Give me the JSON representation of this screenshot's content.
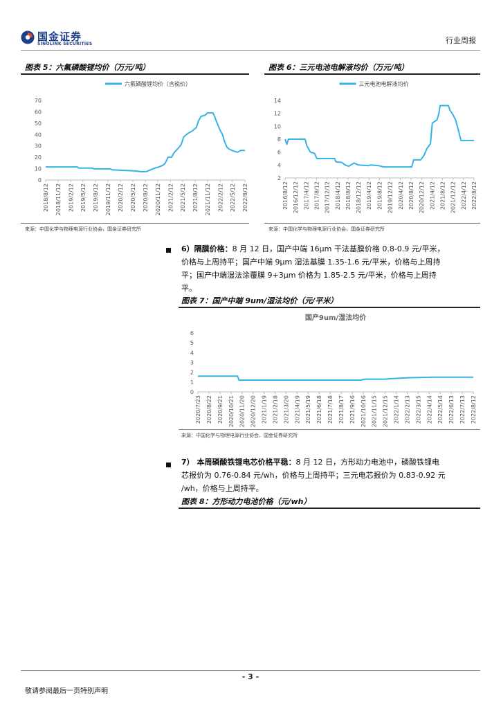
{
  "header": {
    "logo_cn": "国金证券",
    "logo_en": "SINOLINK SECURITIES",
    "report_type": "行业周报"
  },
  "fig5": {
    "title": "图表 5：六氟磷酸锂均价（万元/吨）",
    "source": "来源：中国化学与物理电源行业协会，国金证券研究所"
  },
  "fig6": {
    "title": "图表 6：三元电池电解液均价（万元/吨）",
    "source": "来源：中国化学与物理电源行业协会，国金证券研究所"
  },
  "fig7": {
    "title": "图表 7：国产中端 9um/湿法均价（元/平米）",
    "source": "来源：中国化学与物理电源行业协会，国金证券研究所"
  },
  "fig8": {
    "title": "图表 8：方形动力电池价格（元/wh）"
  },
  "para6": {
    "lead": "6）隔膜价格：",
    "body_line1": "8 月 12 日，国产中端 16μm 干法基膜价格 0.8-0.9 元/平米，",
    "body_line2": "价格与上周持平；国产中端 9μm 湿法基膜 1.35-1.6 元/平米，价格与上周持",
    "body_line3": "平；国产中端湿法涂覆膜 9+3μm 价格为 1.85-2.5 元/平米，价格与上周持",
    "body_line4": "平。"
  },
  "para7": {
    "lead": "7） 本周磷酸铁锂电芯价格平稳：",
    "body_line1": "8 月 12 日，方形动力电池中，磷酸铁锂电",
    "body_line2": "芯报价为 0.76-0.84 元/wh，价格与上周持平；三元电芯报价为 0.83-0.92 元",
    "body_line3": "/wh，价格与上周持平。"
  },
  "footer": {
    "page_number": "- 3 -",
    "disclaimer": "敬请参阅最后一页特别声明"
  },
  "chart_data": [
    {
      "id": "fig5",
      "type": "line",
      "legend": "六氟磷酸锂均价（含税价）",
      "legend_position": "top-center",
      "color": "#33b3e6",
      "ylim": [
        0,
        70
      ],
      "yticks": [
        0,
        10,
        20,
        30,
        40,
        50,
        60,
        70
      ],
      "xlim": [
        "2018-08-12",
        "2022-08-12"
      ],
      "xticks": [
        "2018/8/12",
        "2018/11/12",
        "2019/2/12",
        "2019/5/12",
        "2019/8/12",
        "2019/11/12",
        "2020/2/12",
        "2020/5/12",
        "2020/8/12",
        "2020/11/12",
        "2021/2/12",
        "2021/5/12",
        "2021/8/12",
        "2021/11/12",
        "2022/2/12",
        "2022/5/12",
        "2022/8/12"
      ],
      "points": [
        [
          "2018-08-12",
          11.5
        ],
        [
          "2019-04-01",
          11.5
        ],
        [
          "2019-04-10",
          10.5
        ],
        [
          "2019-07-20",
          10.5
        ],
        [
          "2019-08-01",
          9.8
        ],
        [
          "2019-12-01",
          9.8
        ],
        [
          "2019-12-10",
          9
        ],
        [
          "2020-03-01",
          8.5
        ],
        [
          "2020-06-01",
          8
        ],
        [
          "2020-07-15",
          7.3
        ],
        [
          "2020-08-20",
          7.5
        ],
        [
          "2020-09-20",
          9
        ],
        [
          "2020-10-20",
          10.5
        ],
        [
          "2020-11-20",
          11.5
        ],
        [
          "2020-12-20",
          13
        ],
        [
          "2021-01-05",
          15
        ],
        [
          "2021-01-25",
          20
        ],
        [
          "2021-02-20",
          20
        ],
        [
          "2021-03-10",
          24
        ],
        [
          "2021-04-10",
          28
        ],
        [
          "2021-05-01",
          31
        ],
        [
          "2021-05-20",
          38
        ],
        [
          "2021-06-20",
          41
        ],
        [
          "2021-07-20",
          43
        ],
        [
          "2021-08-20",
          46
        ],
        [
          "2021-09-05",
          52
        ],
        [
          "2021-09-25",
          56
        ],
        [
          "2021-10-25",
          57
        ],
        [
          "2021-11-10",
          59
        ],
        [
          "2021-12-20",
          59
        ],
        [
          "2022-01-01",
          56
        ],
        [
          "2022-01-20",
          50
        ],
        [
          "2022-02-10",
          44
        ],
        [
          "2022-02-28",
          40
        ],
        [
          "2022-03-15",
          34
        ],
        [
          "2022-04-01",
          29
        ],
        [
          "2022-04-20",
          27
        ],
        [
          "2022-05-10",
          26
        ],
        [
          "2022-06-01",
          25
        ],
        [
          "2022-06-20",
          24.5
        ],
        [
          "2022-07-10",
          26
        ],
        [
          "2022-08-12",
          26
        ]
      ]
    },
    {
      "id": "fig6",
      "type": "line",
      "legend": "三元电池电解液均价",
      "legend_position": "top-center",
      "color": "#33b3e6",
      "ylim": [
        2,
        14
      ],
      "yticks": [
        2,
        4,
        6,
        8,
        10,
        12,
        14
      ],
      "xlim": [
        "2016-08-12",
        "2022-08-12"
      ],
      "xticks": [
        "2016/8/12",
        "2016/12/12",
        "2017/4/12",
        "2017/8/12",
        "2017/12/12",
        "2018/4/12",
        "2018/8/12",
        "2018/12/12",
        "2019/4/12",
        "2019/8/12",
        "2019/12/12",
        "2020/4/12",
        "2020/8/12",
        "2020/12/12",
        "2021/4/12",
        "2021/8/12",
        "2021/12/12",
        "2022/4/12",
        "2022/8/12"
      ],
      "points": [
        [
          "2016-08-12",
          8
        ],
        [
          "2016-09-01",
          7.2
        ],
        [
          "2016-09-20",
          8
        ],
        [
          "2017-04-01",
          8
        ],
        [
          "2017-04-20",
          7
        ],
        [
          "2017-06-01",
          6
        ],
        [
          "2017-07-20",
          5.8
        ],
        [
          "2017-08-15",
          5
        ],
        [
          "2018-03-10",
          5
        ],
        [
          "2018-03-25",
          4.5
        ],
        [
          "2018-06-01",
          4.4
        ],
        [
          "2018-07-10",
          4
        ],
        [
          "2018-08-20",
          3.8
        ],
        [
          "2018-10-20",
          4.3
        ],
        [
          "2018-12-10",
          4
        ],
        [
          "2019-04-01",
          3.9
        ],
        [
          "2019-05-01",
          4
        ],
        [
          "2019-08-01",
          3.9
        ],
        [
          "2019-10-01",
          3.7
        ],
        [
          "2020-08-20",
          3.7
        ],
        [
          "2020-09-10",
          4.8
        ],
        [
          "2020-12-01",
          4.8
        ],
        [
          "2021-01-10",
          5.5
        ],
        [
          "2021-02-10",
          6.5
        ],
        [
          "2021-03-25",
          7.3
        ],
        [
          "2021-04-15",
          10.5
        ],
        [
          "2021-06-10",
          11
        ],
        [
          "2021-07-01",
          12
        ],
        [
          "2021-07-15",
          13.2
        ],
        [
          "2021-10-20",
          13.2
        ],
        [
          "2021-11-05",
          12.5
        ],
        [
          "2021-12-10",
          11.8
        ],
        [
          "2022-01-10",
          11
        ],
        [
          "2022-02-10",
          9.5
        ],
        [
          "2022-02-28",
          8.5
        ],
        [
          "2022-03-15",
          7.8
        ],
        [
          "2022-08-12",
          7.8
        ]
      ]
    },
    {
      "id": "fig7",
      "type": "line",
      "title": "国产9um/湿法均价",
      "color": "#33b3e6",
      "ylim": [
        0,
        6
      ],
      "yticks": [
        0,
        1,
        2,
        3,
        4,
        5,
        6
      ],
      "xlim": [
        "2020-07-23",
        "2022-08-12"
      ],
      "xticks": [
        "2020/7/23",
        "2020/8/22",
        "2020/9/21",
        "2020/10/21",
        "2020/11/20",
        "2020/12/20",
        "2021/1/19",
        "2021/2/18",
        "2021/3/20",
        "2021/4/19",
        "2021/5/19",
        "2021/6/18",
        "2021/7/18",
        "2021/8/17",
        "2021/9/16",
        "2021/10/16",
        "2021/11/15",
        "2021/12/15",
        "2022/1/14",
        "2022/2/13",
        "2022/3/15",
        "2022/4/14",
        "2022/5/14",
        "2022/6/13",
        "2022/7/13",
        "2022/8/12"
      ],
      "points": [
        [
          "2020-07-23",
          1.6
        ],
        [
          "2020-11-08",
          1.6
        ],
        [
          "2020-11-12",
          1.2
        ],
        [
          "2021-10-10",
          1.2
        ],
        [
          "2021-10-20",
          1.3
        ],
        [
          "2021-12-15",
          1.3
        ],
        [
          "2022-01-01",
          1.35
        ],
        [
          "2022-02-20",
          1.45
        ],
        [
          "2022-04-20",
          1.5
        ],
        [
          "2022-08-12",
          1.5
        ]
      ]
    }
  ]
}
